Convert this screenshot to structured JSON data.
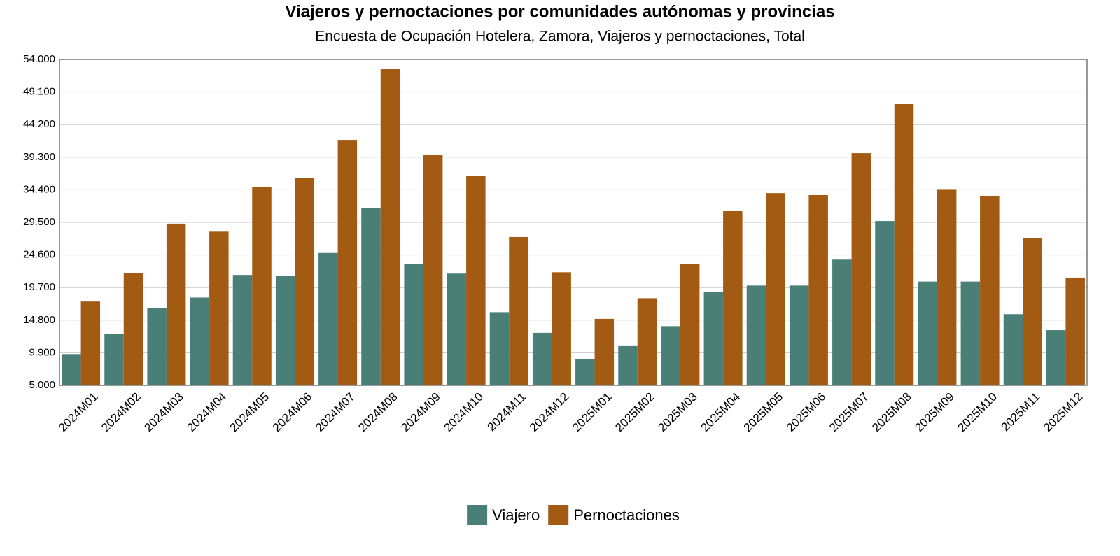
{
  "chart_data": {
    "type": "bar",
    "title": "Viajeros y pernoctaciones por comunidades autónomas y provincias",
    "subtitle": "Encuesta de Ocupación Hotelera, Zamora, Viajeros y pernoctaciones, Total",
    "categories": [
      "2024M01",
      "2024M02",
      "2024M03",
      "2024M04",
      "2024M05",
      "2024M06",
      "2024M07",
      "2024M08",
      "2024M09",
      "2024M10",
      "2024M11",
      "2024M12",
      "2025M01",
      "2025M02",
      "2025M03",
      "2025M04",
      "2025M05",
      "2025M06",
      "2025M07",
      "2025M08",
      "2025M09",
      "2025M10",
      "2025M11",
      "2025M12"
    ],
    "series": [
      {
        "name": "Viajero",
        "color": "#4a7f78",
        "values": [
          9700,
          12700,
          16600,
          18200,
          21600,
          21500,
          24900,
          31700,
          23200,
          21800,
          16000,
          12900,
          9000,
          10900,
          13900,
          19000,
          20000,
          20000,
          23900,
          29700,
          20600,
          20600,
          15700,
          13300
        ]
      },
      {
        "name": "Pernoctaciones",
        "color": "#a35a12",
        "values": [
          17600,
          21900,
          29300,
          28100,
          34800,
          36200,
          41900,
          52600,
          39700,
          36500,
          27300,
          22000,
          15000,
          18100,
          23300,
          31200,
          33900,
          33600,
          39900,
          47300,
          34500,
          33500,
          27100,
          21200
        ]
      }
    ],
    "ylim": [
      5000,
      54000
    ],
    "yticks": [
      {
        "value": 5000,
        "label": "5.000"
      },
      {
        "value": 9900,
        "label": "9.900"
      },
      {
        "value": 14800,
        "label": "14.800"
      },
      {
        "value": 19700,
        "label": "19.700"
      },
      {
        "value": 24600,
        "label": "24.600"
      },
      {
        "value": 29500,
        "label": "29.500"
      },
      {
        "value": 34400,
        "label": "34.400"
      },
      {
        "value": 39300,
        "label": "39.300"
      },
      {
        "value": 44200,
        "label": "44.200"
      },
      {
        "value": 49100,
        "label": "49.100"
      },
      {
        "value": 54000,
        "label": "54.000"
      }
    ],
    "grid": true,
    "legend": "bottom"
  }
}
